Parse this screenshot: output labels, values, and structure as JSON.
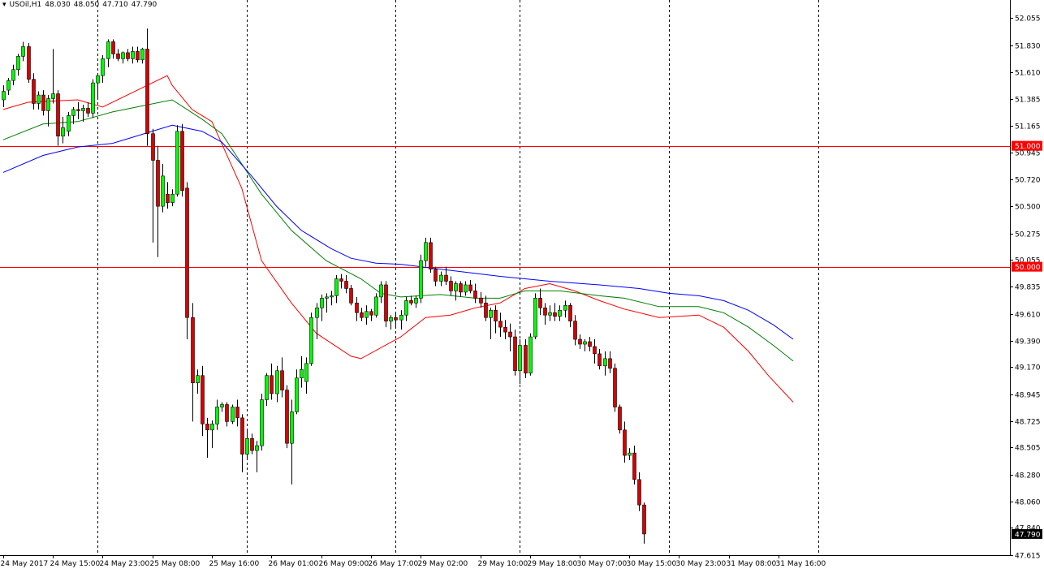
{
  "header": {
    "symbol": "USOil,H1",
    "open": "48.030",
    "high": "48.050",
    "low": "47.710",
    "close": "47.790"
  },
  "chart_data": {
    "type": "candlestick",
    "symbol": "USOil",
    "timeframe": "H1",
    "ylim": [
      47.615,
      52.125
    ],
    "y_ticks": [
      "52.055",
      "51.830",
      "51.610",
      "51.385",
      "51.165",
      "50.945",
      "50.720",
      "50.500",
      "50.275",
      "50.055",
      "49.835",
      "49.610",
      "49.390",
      "49.170",
      "48.945",
      "48.725",
      "48.505",
      "48.280",
      "48.060",
      "47.840",
      "47.615"
    ],
    "x_labels": [
      "24 May 2017",
      "24 May 15:00",
      "24 May 23:00",
      "25 May 08:00",
      "25 May 16:00",
      "26 May 01:00",
      "26 May 09:00",
      "26 May 17:00",
      "29 May 02:00",
      "29 May 10:00",
      "29 May 18:00",
      "30 May 07:00",
      "30 May 15:00",
      "30 May 23:00",
      "31 May 08:00",
      "31 May 16:00"
    ],
    "session_separators": [
      19,
      49,
      79,
      104,
      134,
      164
    ],
    "horizontal_lines": [
      {
        "label": "51.000",
        "value": 51.0,
        "color": "#ff0000"
      },
      {
        "label": "50.000",
        "value": 50.0,
        "color": "#ff0000"
      }
    ],
    "current_price": {
      "label": "47.790",
      "value": 47.79
    },
    "grid": false,
    "colors": {
      "bull": "#00ff00",
      "bear": "#d70000",
      "wick": "#000000",
      "ema_fast": "#ff0000",
      "ema_mid": "#008000",
      "ema_slow": "#0000ff"
    },
    "moving_averages": [
      {
        "color": "#ff0000",
        "points": [
          [
            0,
            51.3
          ],
          [
            5,
            51.36
          ],
          [
            15,
            51.38
          ],
          [
            20,
            51.32
          ],
          [
            33,
            51.58
          ],
          [
            34,
            51.5
          ],
          [
            38,
            51.3
          ],
          [
            42,
            51.2
          ],
          [
            48,
            50.65
          ],
          [
            52,
            50.05
          ],
          [
            58,
            49.7
          ],
          [
            63,
            49.45
          ],
          [
            70,
            49.26
          ],
          [
            72,
            49.24
          ],
          [
            80,
            49.42
          ],
          [
            85,
            49.58
          ],
          [
            90,
            49.6
          ],
          [
            95,
            49.66
          ],
          [
            100,
            49.7
          ],
          [
            105,
            49.82
          ],
          [
            110,
            49.86
          ],
          [
            115,
            49.8
          ],
          [
            120,
            49.72
          ],
          [
            125,
            49.65
          ],
          [
            132,
            49.58
          ],
          [
            140,
            49.6
          ],
          [
            145,
            49.5
          ],
          [
            150,
            49.3
          ],
          [
            154,
            49.1
          ],
          [
            159,
            48.88
          ]
        ]
      },
      {
        "color": "#008000",
        "points": [
          [
            0,
            51.05
          ],
          [
            8,
            51.18
          ],
          [
            15,
            51.2
          ],
          [
            22,
            51.28
          ],
          [
            34,
            51.38
          ],
          [
            40,
            51.22
          ],
          [
            44,
            51.1
          ],
          [
            48,
            50.85
          ],
          [
            52,
            50.6
          ],
          [
            58,
            50.3
          ],
          [
            65,
            50.05
          ],
          [
            72,
            49.9
          ],
          [
            76,
            49.78
          ],
          [
            80,
            49.75
          ],
          [
            88,
            49.77
          ],
          [
            95,
            49.74
          ],
          [
            100,
            49.74
          ],
          [
            105,
            49.8
          ],
          [
            112,
            49.8
          ],
          [
            120,
            49.76
          ],
          [
            125,
            49.74
          ],
          [
            132,
            49.67
          ],
          [
            140,
            49.67
          ],
          [
            145,
            49.62
          ],
          [
            150,
            49.5
          ],
          [
            155,
            49.35
          ],
          [
            159,
            49.22
          ]
        ]
      },
      {
        "color": "#0000ff",
        "points": [
          [
            0,
            50.78
          ],
          [
            8,
            50.92
          ],
          [
            15,
            50.99
          ],
          [
            22,
            51.02
          ],
          [
            34,
            51.17
          ],
          [
            40,
            51.12
          ],
          [
            44,
            51.03
          ],
          [
            50,
            50.75
          ],
          [
            55,
            50.5
          ],
          [
            60,
            50.3
          ],
          [
            66,
            50.15
          ],
          [
            70,
            50.07
          ],
          [
            75,
            50.03
          ],
          [
            80,
            50.02
          ],
          [
            90,
            49.97
          ],
          [
            100,
            49.92
          ],
          [
            110,
            49.88
          ],
          [
            120,
            49.85
          ],
          [
            128,
            49.82
          ],
          [
            134,
            49.78
          ],
          [
            140,
            49.76
          ],
          [
            145,
            49.72
          ],
          [
            150,
            49.64
          ],
          [
            155,
            49.52
          ],
          [
            159,
            49.4
          ]
        ]
      }
    ],
    "candles": [
      {
        "o": 51.38,
        "h": 51.5,
        "l": 51.32,
        "c": 51.45
      },
      {
        "o": 51.46,
        "h": 51.56,
        "l": 51.42,
        "c": 51.54
      },
      {
        "o": 51.54,
        "h": 51.67,
        "l": 51.5,
        "c": 51.63
      },
      {
        "o": 51.63,
        "h": 51.76,
        "l": 51.58,
        "c": 51.74
      },
      {
        "o": 51.74,
        "h": 51.86,
        "l": 51.7,
        "c": 51.82
      },
      {
        "o": 51.82,
        "h": 51.85,
        "l": 51.52,
        "c": 51.55
      },
      {
        "o": 51.55,
        "h": 51.6,
        "l": 51.3,
        "c": 51.35
      },
      {
        "o": 51.35,
        "h": 51.45,
        "l": 51.3,
        "c": 51.42
      },
      {
        "o": 51.42,
        "h": 51.46,
        "l": 51.25,
        "c": 51.29
      },
      {
        "o": 51.29,
        "h": 51.42,
        "l": 51.16,
        "c": 51.39
      },
      {
        "o": 51.39,
        "h": 51.8,
        "l": 51.35,
        "c": 51.43
      },
      {
        "o": 51.43,
        "h": 51.46,
        "l": 51.0,
        "c": 51.08
      },
      {
        "o": 51.08,
        "h": 51.24,
        "l": 51.02,
        "c": 51.15
      },
      {
        "o": 51.12,
        "h": 51.28,
        "l": 51.08,
        "c": 51.25
      },
      {
        "o": 51.25,
        "h": 51.32,
        "l": 51.18,
        "c": 51.3
      },
      {
        "o": 51.3,
        "h": 51.36,
        "l": 51.22,
        "c": 51.29
      },
      {
        "o": 51.29,
        "h": 51.34,
        "l": 51.2,
        "c": 51.31
      },
      {
        "o": 51.31,
        "h": 51.36,
        "l": 51.24,
        "c": 51.27
      },
      {
        "o": 51.27,
        "h": 51.55,
        "l": 51.23,
        "c": 51.52
      },
      {
        "o": 51.52,
        "h": 51.6,
        "l": 51.38,
        "c": 51.58
      },
      {
        "o": 51.58,
        "h": 51.75,
        "l": 51.52,
        "c": 51.72
      },
      {
        "o": 51.72,
        "h": 51.88,
        "l": 51.65,
        "c": 51.86
      },
      {
        "o": 51.86,
        "h": 51.88,
        "l": 51.72,
        "c": 51.76
      },
      {
        "o": 51.76,
        "h": 51.8,
        "l": 51.7,
        "c": 51.72
      },
      {
        "o": 51.72,
        "h": 51.78,
        "l": 51.68,
        "c": 51.77
      },
      {
        "o": 51.77,
        "h": 51.8,
        "l": 51.7,
        "c": 51.72
      },
      {
        "o": 51.72,
        "h": 51.82,
        "l": 51.68,
        "c": 51.78
      },
      {
        "o": 51.78,
        "h": 51.82,
        "l": 51.69,
        "c": 51.71
      },
      {
        "o": 51.71,
        "h": 51.81,
        "l": 51.68,
        "c": 51.8
      },
      {
        "o": 51.8,
        "h": 51.97,
        "l": 51.0,
        "c": 51.1
      },
      {
        "o": 51.1,
        "h": 51.14,
        "l": 50.2,
        "c": 50.88
      },
      {
        "o": 50.88,
        "h": 51.0,
        "l": 50.08,
        "c": 50.5
      },
      {
        "o": 50.5,
        "h": 50.85,
        "l": 50.45,
        "c": 50.75
      },
      {
        "o": 50.6,
        "h": 50.7,
        "l": 50.48,
        "c": 50.53
      },
      {
        "o": 50.53,
        "h": 50.64,
        "l": 50.5,
        "c": 50.6
      },
      {
        "o": 50.6,
        "h": 51.17,
        "l": 50.58,
        "c": 51.12
      },
      {
        "o": 51.12,
        "h": 51.18,
        "l": 50.58,
        "c": 50.63
      },
      {
        "o": 50.65,
        "h": 50.7,
        "l": 49.4,
        "c": 49.58
      },
      {
        "o": 49.58,
        "h": 49.7,
        "l": 48.72,
        "c": 49.04
      },
      {
        "o": 49.04,
        "h": 49.15,
        "l": 48.95,
        "c": 49.1
      },
      {
        "o": 49.1,
        "h": 49.18,
        "l": 48.6,
        "c": 48.7
      },
      {
        "o": 48.7,
        "h": 48.75,
        "l": 48.42,
        "c": 48.65
      },
      {
        "o": 48.65,
        "h": 48.73,
        "l": 48.5,
        "c": 48.7
      },
      {
        "o": 48.7,
        "h": 48.9,
        "l": 48.65,
        "c": 48.84
      },
      {
        "o": 48.84,
        "h": 48.88,
        "l": 48.8,
        "c": 48.86
      },
      {
        "o": 48.86,
        "h": 48.88,
        "l": 48.68,
        "c": 48.72
      },
      {
        "o": 48.72,
        "h": 48.86,
        "l": 48.7,
        "c": 48.84
      },
      {
        "o": 48.84,
        "h": 48.9,
        "l": 48.68,
        "c": 48.75
      },
      {
        "o": 48.75,
        "h": 48.78,
        "l": 48.3,
        "c": 48.45
      },
      {
        "o": 48.45,
        "h": 48.65,
        "l": 48.42,
        "c": 48.58
      },
      {
        "o": 48.58,
        "h": 48.62,
        "l": 48.45,
        "c": 48.48
      },
      {
        "o": 48.48,
        "h": 48.56,
        "l": 48.3,
        "c": 48.52
      },
      {
        "o": 48.52,
        "h": 48.95,
        "l": 48.48,
        "c": 48.9
      },
      {
        "o": 48.9,
        "h": 49.12,
        "l": 48.85,
        "c": 49.1
      },
      {
        "o": 49.1,
        "h": 49.2,
        "l": 48.9,
        "c": 48.95
      },
      {
        "o": 48.95,
        "h": 49.18,
        "l": 48.88,
        "c": 49.14
      },
      {
        "o": 49.14,
        "h": 49.25,
        "l": 48.92,
        "c": 48.98
      },
      {
        "o": 48.98,
        "h": 49.02,
        "l": 48.5,
        "c": 48.54
      },
      {
        "o": 48.54,
        "h": 48.9,
        "l": 48.2,
        "c": 48.8
      },
      {
        "o": 48.8,
        "h": 49.15,
        "l": 48.78,
        "c": 49.08
      },
      {
        "o": 49.08,
        "h": 49.26,
        "l": 49.0,
        "c": 49.15
      },
      {
        "o": 49.05,
        "h": 49.25,
        "l": 48.95,
        "c": 49.2
      },
      {
        "o": 49.2,
        "h": 49.62,
        "l": 49.18,
        "c": 49.58
      },
      {
        "o": 49.58,
        "h": 49.7,
        "l": 49.4,
        "c": 49.66
      },
      {
        "o": 49.66,
        "h": 49.77,
        "l": 49.55,
        "c": 49.74
      },
      {
        "o": 49.74,
        "h": 49.78,
        "l": 49.62,
        "c": 49.75
      },
      {
        "o": 49.75,
        "h": 49.8,
        "l": 49.68,
        "c": 49.76
      },
      {
        "o": 49.76,
        "h": 49.93,
        "l": 49.7,
        "c": 49.9
      },
      {
        "o": 49.9,
        "h": 49.94,
        "l": 49.82,
        "c": 49.88
      },
      {
        "o": 49.88,
        "h": 49.93,
        "l": 49.78,
        "c": 49.82
      },
      {
        "o": 49.82,
        "h": 49.85,
        "l": 49.68,
        "c": 49.7
      },
      {
        "o": 49.7,
        "h": 49.75,
        "l": 49.55,
        "c": 49.62
      },
      {
        "o": 49.62,
        "h": 49.66,
        "l": 49.55,
        "c": 49.58
      },
      {
        "o": 49.58,
        "h": 49.68,
        "l": 49.52,
        "c": 49.63
      },
      {
        "o": 49.63,
        "h": 49.65,
        "l": 49.55,
        "c": 49.6
      },
      {
        "o": 49.6,
        "h": 49.78,
        "l": 49.58,
        "c": 49.75
      },
      {
        "o": 49.75,
        "h": 49.88,
        "l": 49.7,
        "c": 49.85
      },
      {
        "o": 49.85,
        "h": 49.88,
        "l": 49.5,
        "c": 49.55
      },
      {
        "o": 49.55,
        "h": 49.6,
        "l": 49.48,
        "c": 49.58
      },
      {
        "o": 49.58,
        "h": 49.62,
        "l": 49.5,
        "c": 49.56
      },
      {
        "o": 49.56,
        "h": 49.64,
        "l": 49.48,
        "c": 49.6
      },
      {
        "o": 49.6,
        "h": 49.75,
        "l": 49.55,
        "c": 49.72
      },
      {
        "o": 49.72,
        "h": 49.76,
        "l": 49.68,
        "c": 49.7
      },
      {
        "o": 49.7,
        "h": 49.76,
        "l": 49.66,
        "c": 49.74
      },
      {
        "o": 49.74,
        "h": 50.1,
        "l": 49.7,
        "c": 50.05
      },
      {
        "o": 50.05,
        "h": 50.24,
        "l": 50.0,
        "c": 50.2
      },
      {
        "o": 50.2,
        "h": 50.24,
        "l": 49.95,
        "c": 49.98
      },
      {
        "o": 49.98,
        "h": 50.0,
        "l": 49.84,
        "c": 49.88
      },
      {
        "o": 49.88,
        "h": 49.96,
        "l": 49.84,
        "c": 49.93
      },
      {
        "o": 49.93,
        "h": 50.0,
        "l": 49.85,
        "c": 49.88
      },
      {
        "o": 49.88,
        "h": 49.92,
        "l": 49.76,
        "c": 49.8
      },
      {
        "o": 49.8,
        "h": 49.88,
        "l": 49.72,
        "c": 49.86
      },
      {
        "o": 49.86,
        "h": 49.88,
        "l": 49.75,
        "c": 49.79
      },
      {
        "o": 49.79,
        "h": 49.88,
        "l": 49.76,
        "c": 49.85
      },
      {
        "o": 49.85,
        "h": 49.89,
        "l": 49.78,
        "c": 49.8
      },
      {
        "o": 49.8,
        "h": 49.86,
        "l": 49.7,
        "c": 49.74
      },
      {
        "o": 49.74,
        "h": 49.79,
        "l": 49.66,
        "c": 49.7
      },
      {
        "o": 49.7,
        "h": 49.76,
        "l": 49.55,
        "c": 49.58
      },
      {
        "o": 49.58,
        "h": 49.66,
        "l": 49.4,
        "c": 49.64
      },
      {
        "o": 49.64,
        "h": 49.68,
        "l": 49.45,
        "c": 49.55
      },
      {
        "o": 49.55,
        "h": 49.62,
        "l": 49.42,
        "c": 49.5
      },
      {
        "o": 49.5,
        "h": 49.56,
        "l": 49.4,
        "c": 49.46
      },
      {
        "o": 49.46,
        "h": 49.53,
        "l": 49.3,
        "c": 49.42
      },
      {
        "o": 49.42,
        "h": 49.48,
        "l": 49.1,
        "c": 49.14
      },
      {
        "o": 49.14,
        "h": 49.4,
        "l": 49.03,
        "c": 49.35
      },
      {
        "o": 49.35,
        "h": 49.4,
        "l": 49.08,
        "c": 49.12
      },
      {
        "o": 49.12,
        "h": 49.45,
        "l": 49.1,
        "c": 49.42
      },
      {
        "o": 49.42,
        "h": 49.78,
        "l": 49.4,
        "c": 49.74
      },
      {
        "o": 49.74,
        "h": 49.82,
        "l": 49.6,
        "c": 49.66
      },
      {
        "o": 49.66,
        "h": 49.7,
        "l": 49.52,
        "c": 49.6
      },
      {
        "o": 49.6,
        "h": 49.68,
        "l": 49.55,
        "c": 49.62
      },
      {
        "o": 49.62,
        "h": 49.7,
        "l": 49.55,
        "c": 49.59
      },
      {
        "o": 49.59,
        "h": 49.68,
        "l": 49.55,
        "c": 49.64
      },
      {
        "o": 49.64,
        "h": 49.72,
        "l": 49.58,
        "c": 49.68
      },
      {
        "o": 49.68,
        "h": 49.7,
        "l": 49.5,
        "c": 49.55
      },
      {
        "o": 49.55,
        "h": 49.6,
        "l": 49.35,
        "c": 49.4
      },
      {
        "o": 49.4,
        "h": 49.44,
        "l": 49.32,
        "c": 49.36
      },
      {
        "o": 49.36,
        "h": 49.4,
        "l": 49.3,
        "c": 49.38
      },
      {
        "o": 49.38,
        "h": 49.42,
        "l": 49.3,
        "c": 49.34
      },
      {
        "o": 49.34,
        "h": 49.4,
        "l": 49.2,
        "c": 49.28
      },
      {
        "o": 49.28,
        "h": 49.32,
        "l": 49.15,
        "c": 49.18
      },
      {
        "o": 49.18,
        "h": 49.3,
        "l": 49.1,
        "c": 49.24
      },
      {
        "o": 49.24,
        "h": 49.3,
        "l": 49.12,
        "c": 49.16
      },
      {
        "o": 49.16,
        "h": 49.2,
        "l": 48.8,
        "c": 48.84
      },
      {
        "o": 48.84,
        "h": 48.86,
        "l": 48.62,
        "c": 48.65
      },
      {
        "o": 48.65,
        "h": 48.72,
        "l": 48.38,
        "c": 48.44
      },
      {
        "o": 48.44,
        "h": 48.5,
        "l": 48.4,
        "c": 48.46
      },
      {
        "o": 48.46,
        "h": 48.52,
        "l": 48.2,
        "c": 48.24
      },
      {
        "o": 48.24,
        "h": 48.3,
        "l": 47.98,
        "c": 48.03
      },
      {
        "o": 48.03,
        "h": 48.05,
        "l": 47.71,
        "c": 47.79
      }
    ]
  }
}
